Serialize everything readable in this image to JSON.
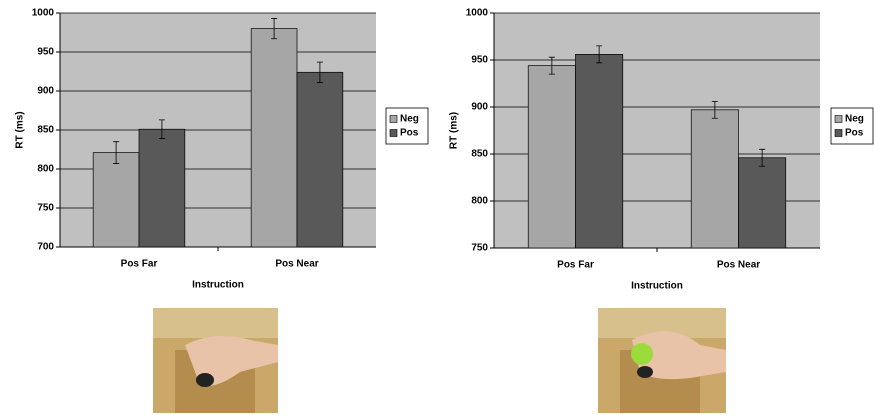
{
  "chart_data": [
    {
      "type": "bar",
      "x_label": "Instruction",
      "y_label": "RT (ms)",
      "categories": [
        "Pos Far",
        "Pos Near"
      ],
      "series": [
        {
          "name": "Neg",
          "color": "#a6a6a6",
          "values": [
            821,
            980
          ],
          "errors": [
            14,
            13
          ]
        },
        {
          "name": "Pos",
          "color": "#595959",
          "values": [
            851,
            924
          ],
          "errors": [
            12,
            13
          ]
        }
      ],
      "ylim": [
        700,
        1000
      ],
      "yticks": [
        700,
        750,
        800,
        850,
        900,
        950,
        1000
      ],
      "grid": true,
      "legend": "right"
    },
    {
      "type": "bar",
      "x_label": "Instruction",
      "y_label": "RT (ms)",
      "categories": [
        "Pos Far",
        "Pos Near"
      ],
      "series": [
        {
          "name": "Neg",
          "color": "#a6a6a6",
          "values": [
            944,
            897
          ],
          "errors": [
            9,
            9
          ]
        },
        {
          "name": "Pos",
          "color": "#595959",
          "values": [
            956,
            846
          ],
          "errors": [
            9,
            9
          ]
        }
      ],
      "ylim": [
        750,
        1000
      ],
      "yticks": [
        750,
        800,
        850,
        900,
        950,
        1000
      ],
      "grid": true,
      "legend": "right"
    }
  ]
}
